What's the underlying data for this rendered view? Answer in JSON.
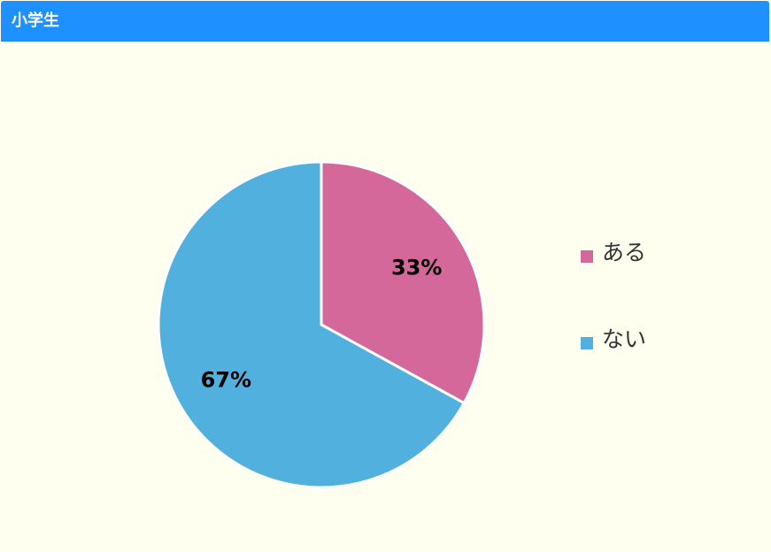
{
  "chart_data": {
    "type": "pie",
    "title": "小学生",
    "categories": [
      "ある",
      "ない"
    ],
    "values": [
      33,
      67
    ],
    "value_labels": [
      "33%",
      "67%"
    ],
    "colors": [
      "#d5689a",
      "#52b0de"
    ],
    "legend": "right"
  }
}
